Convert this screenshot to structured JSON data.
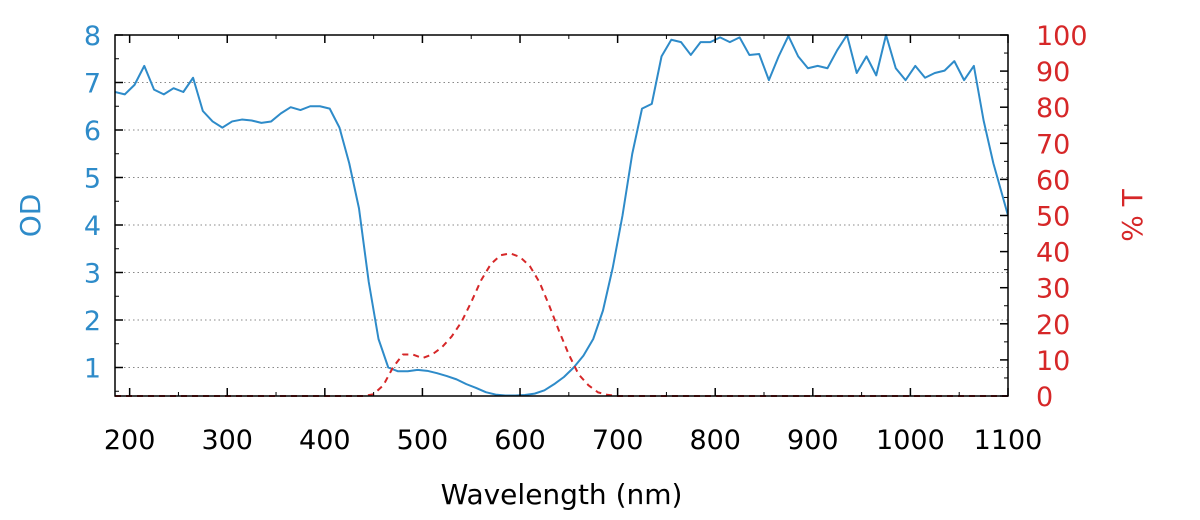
{
  "chart_data": {
    "type": "line",
    "title": "",
    "xlabel": "Wavelength (nm)",
    "ylabel": "OD",
    "y2label": "% T",
    "xlim": [
      185,
      1100
    ],
    "ylim": [
      0.4,
      8
    ],
    "y2lim": [
      0,
      100
    ],
    "x_ticks": [
      200,
      300,
      400,
      500,
      600,
      700,
      800,
      900,
      1000,
      1100
    ],
    "y_ticks": [
      1,
      2,
      3,
      4,
      5,
      6,
      7,
      8
    ],
    "y2_ticks": [
      0,
      10,
      20,
      30,
      40,
      50,
      60,
      70,
      80,
      90,
      100
    ],
    "grid": true,
    "colors": {
      "od": "#2e8bc9",
      "transmission": "#d62728",
      "grid": "#888888",
      "frame": "#000000"
    },
    "series": [
      {
        "axis": "left",
        "style": "solid",
        "x": [
          185,
          195,
          205,
          215,
          225,
          235,
          245,
          255,
          265,
          275,
          285,
          295,
          305,
          315,
          325,
          335,
          345,
          355,
          365,
          375,
          385,
          395,
          405,
          415,
          425,
          435,
          445,
          455,
          465,
          475,
          485,
          495,
          505,
          515,
          525,
          535,
          545,
          555,
          565,
          575,
          585,
          595,
          605,
          615,
          625,
          635,
          645,
          655,
          665,
          675,
          685,
          695,
          705,
          715,
          725,
          735,
          745,
          755,
          765,
          775,
          785,
          795,
          805,
          815,
          825,
          835,
          845,
          855,
          865,
          875,
          885,
          895,
          905,
          915,
          925,
          935,
          945,
          955,
          965,
          975,
          985,
          995,
          1005,
          1015,
          1025,
          1035,
          1045,
          1055,
          1065,
          1075,
          1085,
          1100
        ],
        "values": [
          6.8,
          6.75,
          6.95,
          7.35,
          6.85,
          6.75,
          6.88,
          6.8,
          7.1,
          6.4,
          6.18,
          6.05,
          6.18,
          6.22,
          6.2,
          6.15,
          6.18,
          6.35,
          6.48,
          6.42,
          6.5,
          6.5,
          6.45,
          6.05,
          5.3,
          4.35,
          2.8,
          1.6,
          1.0,
          0.92,
          0.92,
          0.95,
          0.93,
          0.88,
          0.82,
          0.75,
          0.65,
          0.57,
          0.48,
          0.43,
          0.41,
          0.41,
          0.42,
          0.45,
          0.52,
          0.65,
          0.8,
          1.0,
          1.25,
          1.6,
          2.2,
          3.1,
          4.2,
          5.5,
          6.45,
          6.55,
          7.55,
          7.9,
          7.85,
          7.58,
          7.85,
          7.85,
          7.95,
          7.85,
          7.95,
          7.58,
          7.6,
          7.05,
          7.55,
          7.98,
          7.55,
          7.3,
          7.35,
          7.3,
          7.68,
          8.0,
          7.2,
          7.55,
          7.15,
          8.0,
          7.3,
          7.05,
          7.35,
          7.1,
          7.2,
          7.25,
          7.45,
          7.05,
          7.35,
          6.2,
          5.3,
          4.2
        ]
      },
      {
        "axis": "right",
        "style": "dashed",
        "x": [
          185,
          440,
          450,
          460,
          470,
          480,
          490,
          500,
          510,
          520,
          530,
          540,
          550,
          560,
          570,
          580,
          590,
          600,
          610,
          620,
          630,
          640,
          650,
          660,
          670,
          680,
          690,
          700,
          1100
        ],
        "values": [
          0,
          0,
          0.5,
          3,
          8,
          11.5,
          11.5,
          10.5,
          11.5,
          13.5,
          16.5,
          20.5,
          26,
          32,
          36.5,
          39,
          39.5,
          38.5,
          36,
          31.5,
          25,
          18,
          11.5,
          6,
          3,
          1,
          0.3,
          0,
          0
        ]
      }
    ]
  }
}
